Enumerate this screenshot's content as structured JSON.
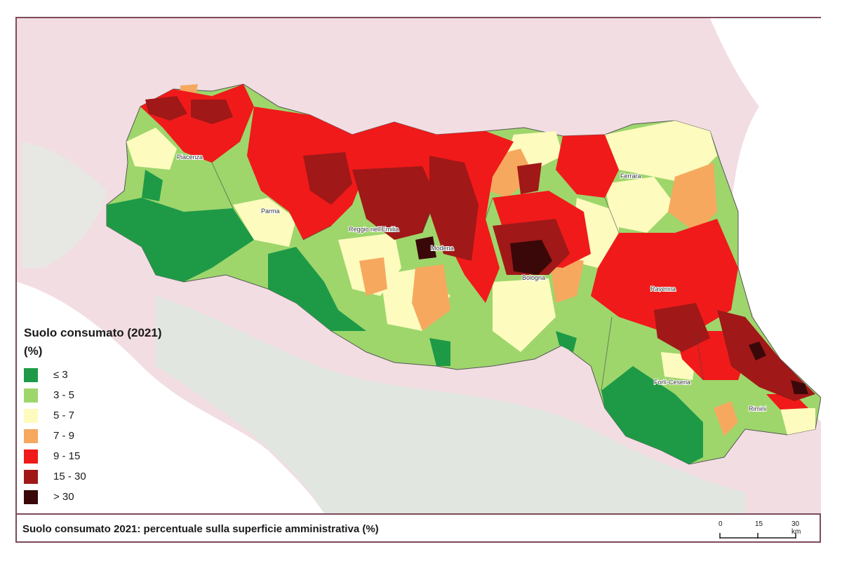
{
  "legend": {
    "title_line1": "Suolo consumato (2021)",
    "title_line2": "(%)",
    "classes": [
      {
        "label": "≤ 3",
        "color": "#1e9a47"
      },
      {
        "label": "3 - 5",
        "color": "#9ed66c"
      },
      {
        "label": "5 - 7",
        "color": "#fdfbbe"
      },
      {
        "label": "7 - 9",
        "color": "#f6a85f"
      },
      {
        "label": "9 - 15",
        "color": "#f01a1a"
      },
      {
        "label": "15 - 30",
        "color": "#a01818"
      },
      {
        "label": "> 30",
        "color": "#3a0808"
      }
    ]
  },
  "cities": {
    "piacenza": "Piacenza",
    "parma": "Parma",
    "reggio": "Reggio nell'Emilia",
    "modena": "Modena",
    "bologna": "Bologna",
    "ferrara": "Ferrara",
    "ravenna": "Ravenna",
    "forli": "Forlì-Cesena",
    "rimini": "Rimini"
  },
  "caption": "Suolo consumato 2021: percentuale sulla superficie amministrativa (%)",
  "scale": {
    "t0": "0",
    "t1": "15",
    "t2": "30 km"
  }
}
